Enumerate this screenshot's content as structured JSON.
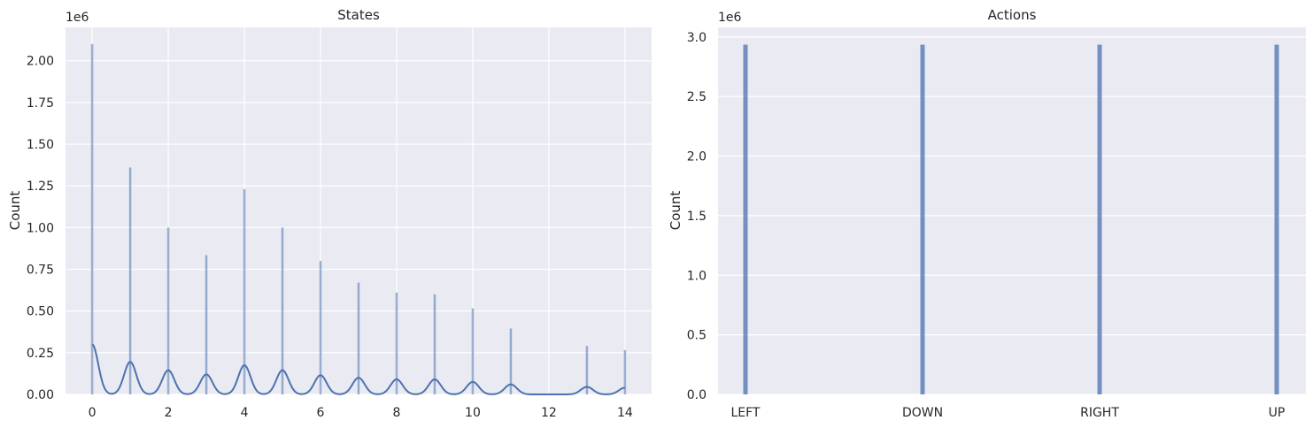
{
  "chart_data": [
    {
      "type": "bar",
      "title": "States",
      "xlabel": "",
      "ylabel": "Count",
      "y_offset_text": "1e6",
      "xlim": [
        -0.7,
        14.7
      ],
      "ylim": [
        0,
        2.2
      ],
      "xticks": [
        0,
        2,
        4,
        6,
        8,
        10,
        12,
        14
      ],
      "xtick_labels": [
        "0",
        "2",
        "4",
        "6",
        "8",
        "10",
        "12",
        "14"
      ],
      "yticks": [
        0,
        0.25,
        0.5,
        0.75,
        1.0,
        1.25,
        1.5,
        1.75,
        2.0
      ],
      "ytick_labels": [
        "0.00",
        "0.25",
        "0.50",
        "0.75",
        "1.00",
        "1.25",
        "1.50",
        "1.75",
        "2.00"
      ],
      "grid": true,
      "bars": {
        "x": [
          0,
          1,
          2,
          3,
          4,
          5,
          6,
          7,
          8,
          9,
          10,
          11,
          13,
          14
        ],
        "values": [
          2.1,
          1.36,
          1.0,
          0.835,
          1.23,
          1.0,
          0.8,
          0.67,
          0.61,
          0.6,
          0.515,
          0.395,
          0.29,
          0.265
        ]
      },
      "kde": {
        "x": [
          0,
          1,
          2,
          3,
          4,
          5,
          6,
          7,
          8,
          9,
          10,
          11,
          13,
          14
        ],
        "peaks": [
          0.3,
          0.195,
          0.145,
          0.12,
          0.175,
          0.145,
          0.115,
          0.1,
          0.09,
          0.09,
          0.075,
          0.06,
          0.045,
          0.04
        ]
      },
      "color": "#4c72b0"
    },
    {
      "type": "bar",
      "title": "Actions",
      "xlabel": "",
      "ylabel": "Count",
      "y_offset_text": "1e6",
      "categories": [
        "LEFT",
        "DOWN",
        "RIGHT",
        "UP"
      ],
      "values": [
        2.935,
        2.935,
        2.935,
        2.935
      ],
      "ylim": [
        0,
        3.08
      ],
      "yticks": [
        0,
        0.5,
        1.0,
        1.5,
        2.0,
        2.5,
        3.0
      ],
      "ytick_labels": [
        "0.0",
        "0.5",
        "1.0",
        "1.5",
        "2.0",
        "2.5",
        "3.0"
      ],
      "grid": true,
      "color": "#4c72b0"
    }
  ]
}
